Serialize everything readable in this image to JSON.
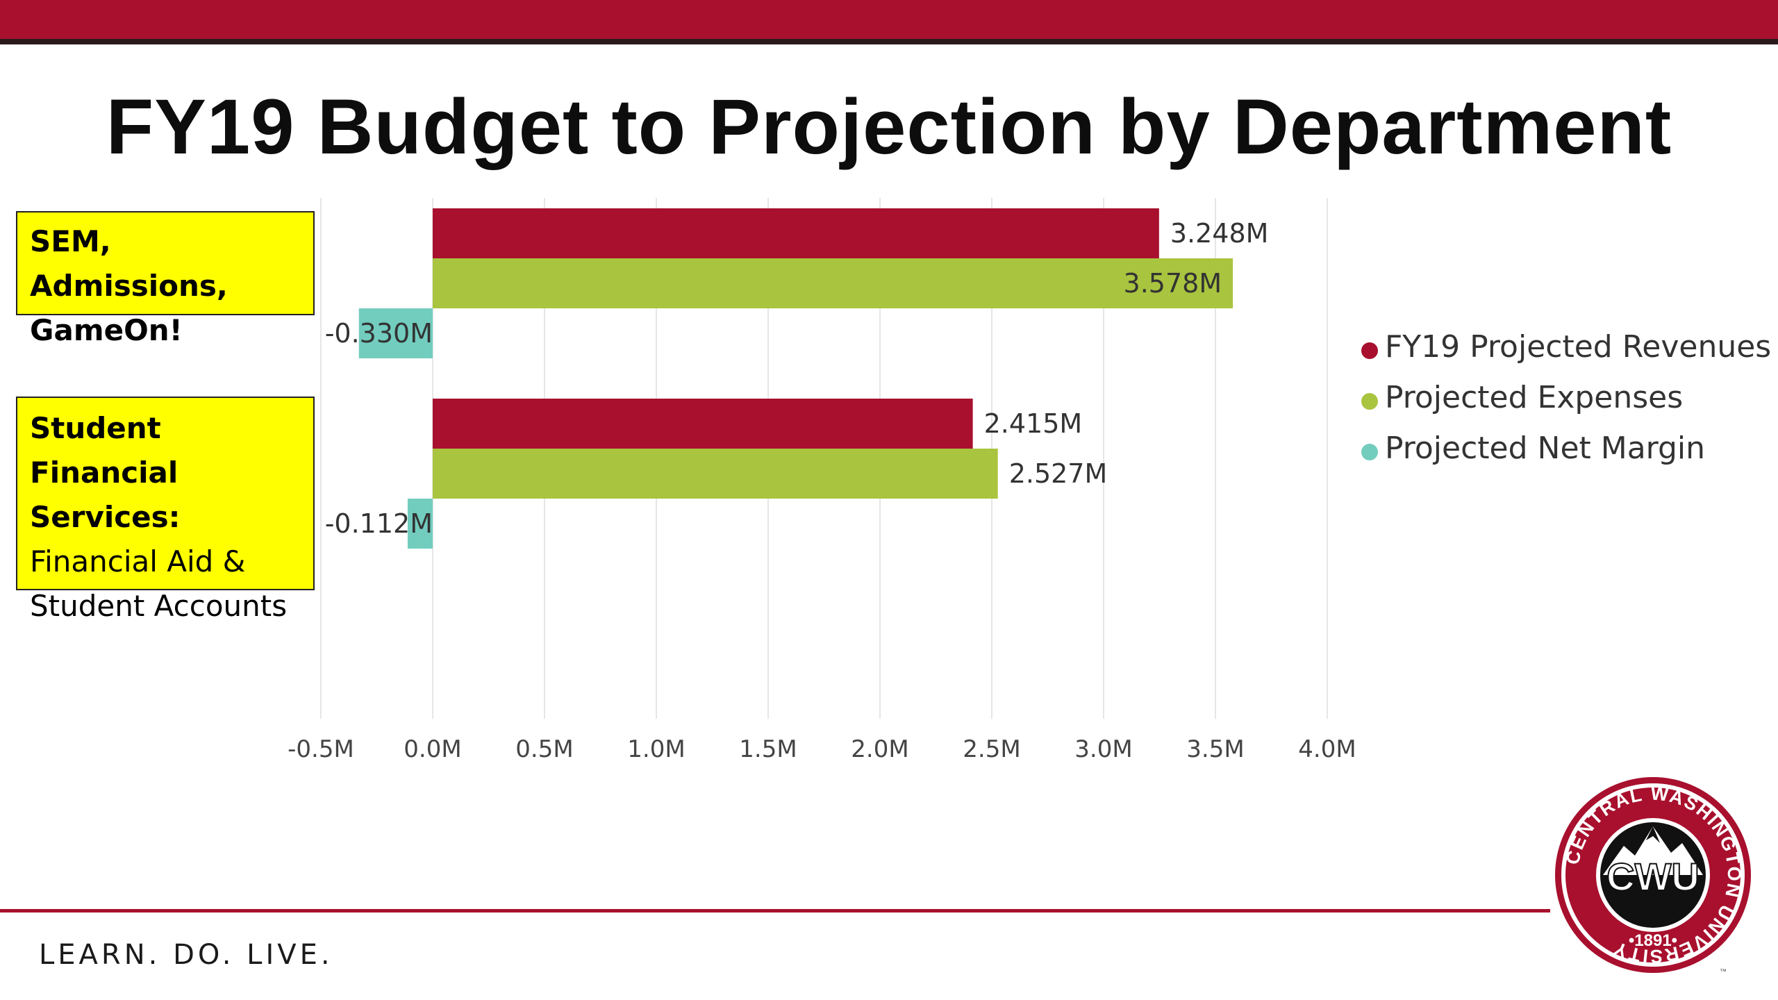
{
  "slide": {
    "title": "FY19 Budget to Projection by Department",
    "tagline": "LEARN. DO. LIVE."
  },
  "category_labels": [
    {
      "line1": "SEM, Admissions,",
      "line2": "GameOn!"
    },
    {
      "line1": "Student Financial",
      "line2": "Services:",
      "line3": "Financial Aid &",
      "line4": "Student Accounts"
    }
  ],
  "logo": {
    "ring_text": "CENTRAL WASHINGTON UNIVERSITY",
    "center_text": "CWU",
    "year_text": "•1891•",
    "tm": "™"
  },
  "colors": {
    "brand_red": "#a8102e",
    "revenues": "#a8102e",
    "expenses": "#a9c43f",
    "net_margin": "#72cdbf"
  },
  "chart_data": {
    "type": "bar",
    "orientation": "horizontal",
    "categories": [
      "SEM, Admissions, GameOn!",
      "Student Financial Services: Financial Aid & Student Accounts"
    ],
    "series": [
      {
        "name": "FY19 Projected Revenues",
        "values": [
          3.248,
          2.415
        ],
        "labels": [
          "3.248M",
          "2.415M"
        ],
        "color": "#a8102e"
      },
      {
        "name": "Projected Expenses",
        "values": [
          3.578,
          2.527
        ],
        "labels": [
          "3.578M",
          "2.527M"
        ],
        "color": "#a9c43f"
      },
      {
        "name": "Projected Net Margin",
        "values": [
          -0.33,
          -0.112
        ],
        "labels": [
          "-0.330M",
          "-0.112M"
        ],
        "color": "#72cdbf"
      }
    ],
    "x_ticks": [
      -0.5,
      0,
      0.5,
      1.0,
      1.5,
      2.0,
      2.5,
      3.0,
      3.5,
      4.0
    ],
    "x_tick_labels": [
      "-0.5M",
      "0.0M",
      "0.5M",
      "1.0M",
      "1.5M",
      "2.0M",
      "2.5M",
      "3.0M",
      "3.5M",
      "4.0M"
    ],
    "xlim": [
      -0.5,
      4.0
    ],
    "grid": true,
    "legend_position": "right"
  }
}
